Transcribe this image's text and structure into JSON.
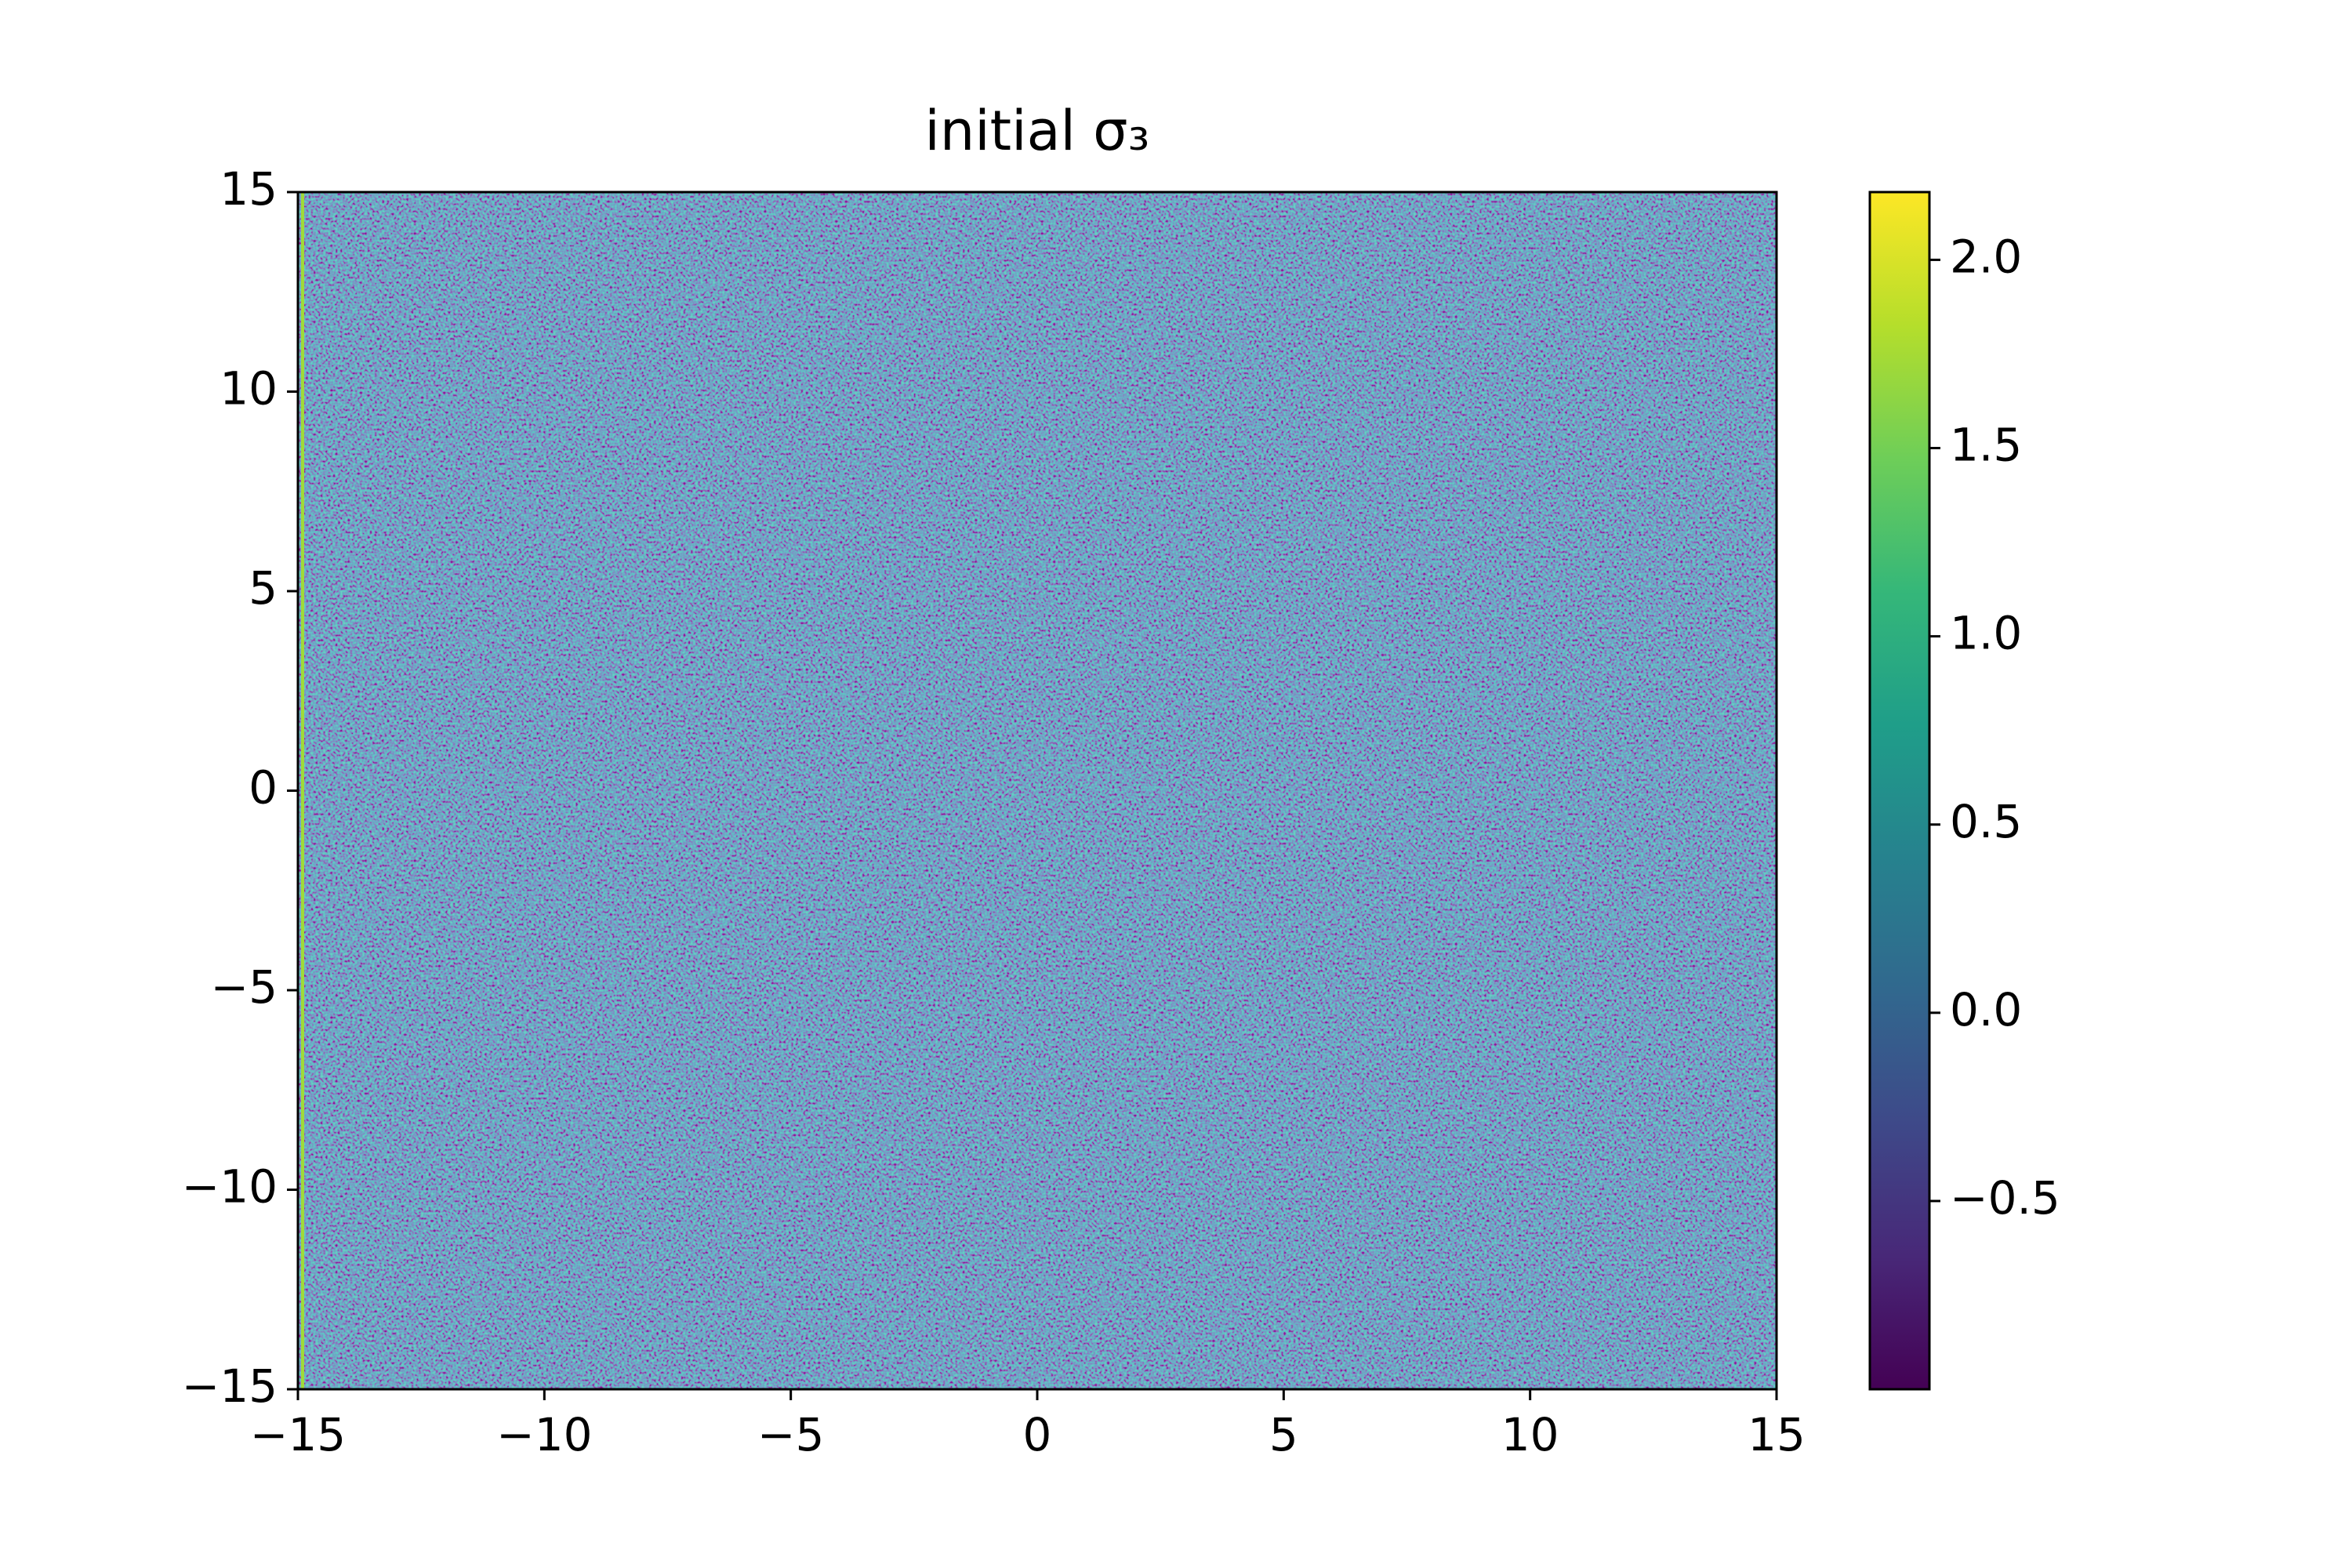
{
  "chart_data": {
    "type": "heatmap",
    "title": "initial σ₃",
    "xlim": [
      -15,
      15
    ],
    "ylim": [
      -15,
      15
    ],
    "xticks": [
      {
        "value": -15,
        "label": "−15"
      },
      {
        "value": -10,
        "label": "−10"
      },
      {
        "value": -5,
        "label": "−5"
      },
      0,
      5,
      10,
      15
    ],
    "yticks": [
      {
        "value": -15,
        "label": "−15"
      },
      {
        "value": -10,
        "label": "−10"
      },
      {
        "value": -5,
        "label": "−5"
      },
      0,
      5,
      10,
      15
    ],
    "colormap": "viridis",
    "clim": [
      -1.0,
      2.18
    ],
    "colorbar_ticks": [
      {
        "value": -0.5,
        "label": "−0.5"
      },
      {
        "value": 0,
        "label": "0.0"
      },
      {
        "value": 0.5,
        "label": "0.5"
      },
      {
        "value": 1,
        "label": "1.0"
      },
      {
        "value": 1.5,
        "label": "1.5"
      },
      {
        "value": 2,
        "label": "2.0"
      }
    ]
  }
}
